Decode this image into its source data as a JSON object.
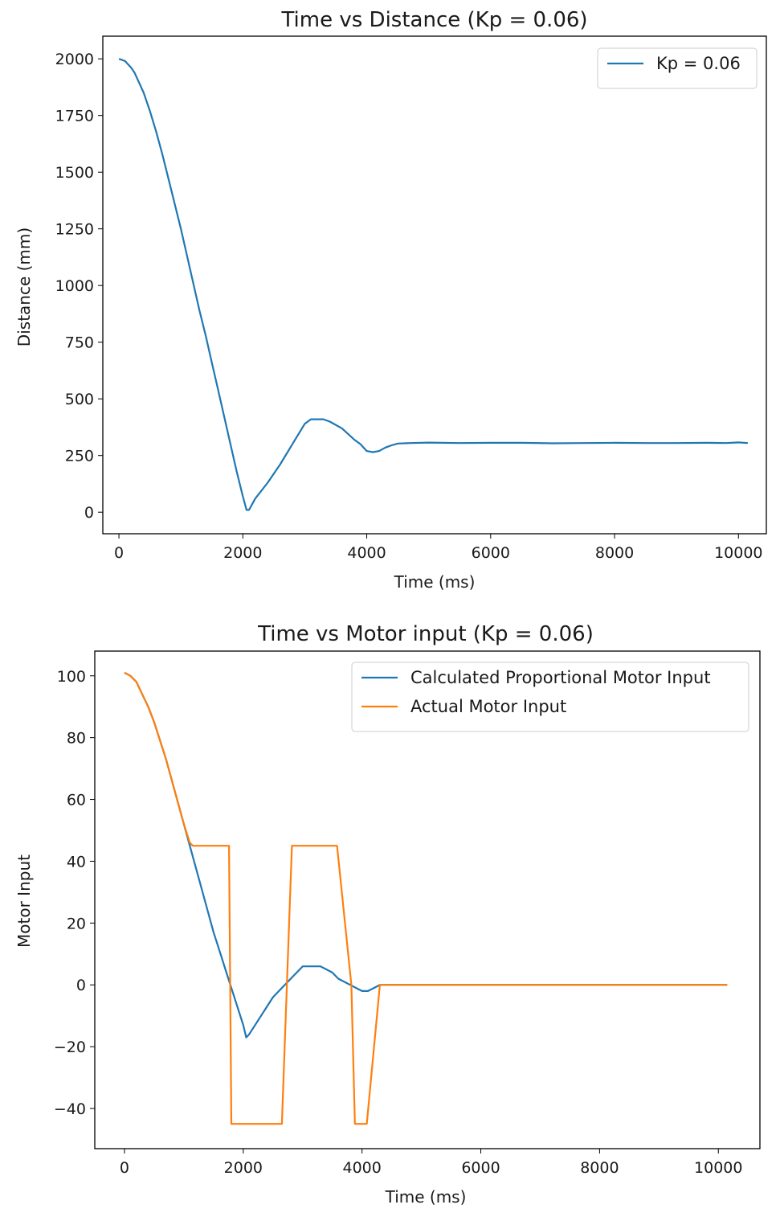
{
  "chart_data": [
    {
      "type": "line",
      "title": "Time vs Distance (Kp = 0.06)",
      "xlabel": "Time (ms)",
      "ylabel": "Distance (mm)",
      "xlim": [
        -260,
        10450
      ],
      "ylim": [
        -95,
        2100
      ],
      "xticks": [
        0,
        2000,
        4000,
        6000,
        8000,
        10000
      ],
      "yticks": [
        0,
        250,
        500,
        750,
        1000,
        1250,
        1500,
        1750,
        2000
      ],
      "xtick_labels": [
        "0",
        "2000",
        "4000",
        "6000",
        "8000",
        "10000"
      ],
      "ytick_labels": [
        "0",
        "250",
        "500",
        "750",
        "1000",
        "1250",
        "1500",
        "1750",
        "2000"
      ],
      "grid": false,
      "legend_position": "top-right",
      "series": [
        {
          "name": "Kp = 0.06",
          "color": "#1f77b4",
          "x": [
            0,
            100,
            150,
            200,
            250,
            300,
            400,
            500,
            600,
            700,
            800,
            900,
            1000,
            1100,
            1200,
            1300,
            1400,
            1500,
            1600,
            1700,
            1800,
            1900,
            2000,
            2030,
            2060,
            2100,
            2200,
            2400,
            2600,
            2800,
            3000,
            3100,
            3200,
            3300,
            3400,
            3500,
            3600,
            3700,
            3800,
            3900,
            4000,
            4100,
            4200,
            4300,
            4400,
            4500,
            4700,
            5000,
            5500,
            6000,
            6500,
            7000,
            7500,
            8000,
            8500,
            9000,
            9500,
            9800,
            10000,
            10150
          ],
          "y": [
            2000,
            1990,
            1975,
            1960,
            1940,
            1910,
            1850,
            1770,
            1680,
            1580,
            1470,
            1360,
            1250,
            1130,
            1010,
            890,
            780,
            660,
            540,
            420,
            300,
            180,
            70,
            40,
            10,
            10,
            60,
            130,
            210,
            300,
            390,
            410,
            410,
            410,
            400,
            385,
            370,
            345,
            320,
            300,
            270,
            265,
            270,
            285,
            295,
            303,
            305,
            307,
            305,
            306,
            306,
            304,
            305,
            306,
            305,
            305,
            306,
            305,
            308,
            305
          ]
        }
      ]
    },
    {
      "type": "line",
      "title": "Time vs Motor input (Kp = 0.06)",
      "xlabel": "Time (ms)",
      "ylabel": "Motor Input",
      "xlim": [
        -500,
        10700
      ],
      "ylim": [
        -53,
        108
      ],
      "xticks": [
        0,
        2000,
        4000,
        6000,
        8000,
        10000
      ],
      "yticks": [
        -40,
        -20,
        0,
        20,
        40,
        60,
        80,
        100
      ],
      "xtick_labels": [
        "0",
        "2000",
        "4000",
        "6000",
        "8000",
        "10000"
      ],
      "ytick_labels": [
        "−40",
        "−20",
        "0",
        "20",
        "40",
        "60",
        "80",
        "100"
      ],
      "grid": false,
      "legend_position": "top-right",
      "series": [
        {
          "name": "Calculated Proportional Motor Input",
          "color": "#1f77b4",
          "x": [
            0,
            100,
            200,
            300,
            400,
            500,
            600,
            700,
            800,
            900,
            1000,
            1100,
            1200,
            1300,
            1400,
            1500,
            1600,
            1700,
            1800,
            1900,
            2000,
            2050,
            2100,
            2200,
            2300,
            2400,
            2500,
            2600,
            2700,
            2800,
            2900,
            3000,
            3100,
            3200,
            3300,
            3400,
            3500,
            3600,
            3700,
            3800,
            3900,
            4000,
            4100,
            4200,
            4300,
            4400,
            5000,
            6000,
            7000,
            8000,
            9000,
            10150
          ],
          "y": [
            101,
            100,
            98,
            94,
            90,
            85,
            79,
            73,
            66,
            59,
            52,
            45,
            38,
            31,
            24,
            17,
            11,
            5,
            -1,
            -7,
            -13,
            -17,
            -16,
            -13,
            -10,
            -7,
            -4,
            -2,
            0,
            2,
            4,
            6,
            6,
            6,
            6,
            5,
            4,
            2,
            1,
            0,
            -1,
            -2,
            -2,
            -1,
            0,
            0,
            0,
            0,
            0,
            0,
            0,
            0
          ]
        },
        {
          "name": "Actual Motor Input",
          "color": "#ff7f0e",
          "x": [
            0,
            100,
            200,
            300,
            400,
            500,
            600,
            700,
            800,
            900,
            1000,
            1100,
            1150,
            1300,
            1500,
            1760,
            1800,
            2000,
            2300,
            2650,
            2820,
            3000,
            3300,
            3580,
            3820,
            3880,
            4000,
            4080,
            4300,
            4400,
            5000,
            6000,
            7000,
            8000,
            9000,
            10150
          ],
          "y": [
            101,
            100,
            98,
            94,
            90,
            85,
            79,
            73,
            66,
            59,
            52,
            46,
            45,
            45,
            45,
            45,
            -45,
            -45,
            -45,
            -45,
            45,
            45,
            45,
            45,
            0,
            -45,
            -45,
            -45,
            0,
            0,
            0,
            0,
            0,
            0,
            0,
            0
          ]
        }
      ]
    }
  ]
}
